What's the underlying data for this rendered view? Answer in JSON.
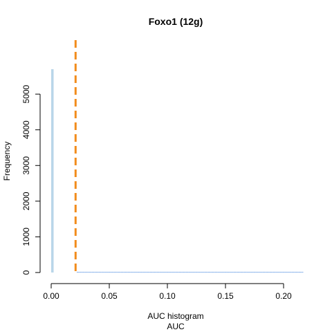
{
  "chart_data": {
    "type": "bar",
    "title": "Foxo1 (12g)",
    "xlabel": "AUC histogram",
    "xlabel2": "AUC",
    "ylabel": "Frequency",
    "xlim": [
      0.0,
      0.215
    ],
    "ylim": [
      0,
      5700
    ],
    "xticks": [
      0.0,
      0.05,
      0.1,
      0.15,
      0.2
    ],
    "xtick_labels": [
      "0.00",
      "0.05",
      "0.10",
      "0.15",
      "0.20"
    ],
    "yticks": [
      0,
      1000,
      2000,
      3000,
      4000,
      5000
    ],
    "ytick_labels": [
      "0",
      "1000",
      "2000",
      "3000",
      "4000",
      "5000"
    ],
    "bin_width": 0.001,
    "bins_start": 0.0,
    "counts": [
      5700,
      0,
      0,
      0,
      0,
      0,
      0,
      0,
      0,
      0,
      0,
      0,
      0,
      0,
      0,
      0,
      0,
      0,
      0,
      0,
      0,
      0,
      18,
      16,
      15,
      14,
      13,
      13,
      12,
      12,
      12,
      11,
      11,
      11,
      10,
      10,
      10,
      9,
      9,
      9,
      9,
      8,
      8,
      8,
      8,
      8,
      7,
      7,
      7,
      7,
      7,
      6,
      6,
      6,
      6,
      6,
      6,
      5,
      5,
      5,
      5,
      5,
      5,
      5,
      4,
      4,
      4,
      4,
      4,
      4,
      4,
      4,
      3,
      3,
      3,
      3,
      3,
      3,
      3,
      3,
      3,
      3,
      2,
      2,
      2,
      2,
      2,
      2,
      2,
      2,
      2,
      2,
      2,
      2,
      2,
      2,
      2,
      2,
      2,
      2,
      2,
      1,
      1,
      1,
      1,
      1,
      1,
      1,
      1,
      1,
      1,
      1,
      1,
      1,
      1,
      1,
      1,
      1,
      1,
      1,
      1,
      1,
      1,
      1,
      1,
      1,
      1,
      1,
      1,
      1,
      1,
      1,
      1,
      1,
      1,
      1,
      1,
      1,
      1,
      1,
      1,
      1,
      1,
      1,
      1,
      1,
      1,
      1,
      1,
      1,
      1,
      1,
      1,
      1,
      1,
      1,
      1,
      1,
      1,
      1,
      1,
      1,
      1,
      1,
      1,
      1,
      1,
      1,
      1,
      1,
      1,
      1,
      1,
      1,
      1,
      1,
      1,
      1,
      1,
      1,
      1,
      1,
      1,
      1,
      1,
      1,
      1,
      1,
      1,
      1,
      1,
      1,
      1,
      1,
      1,
      1,
      1,
      1,
      1,
      1,
      1,
      1,
      1,
      1,
      1,
      1,
      1,
      1,
      1,
      1,
      1,
      1,
      1,
      1,
      1,
      1,
      1
    ],
    "threshold": 0.021,
    "colors": {
      "first_bar": "#b9d6e9",
      "bars": "#6fa2e6",
      "threshold": "#f28c1c",
      "axis": "#000000"
    },
    "grid": false,
    "legend": "none"
  }
}
